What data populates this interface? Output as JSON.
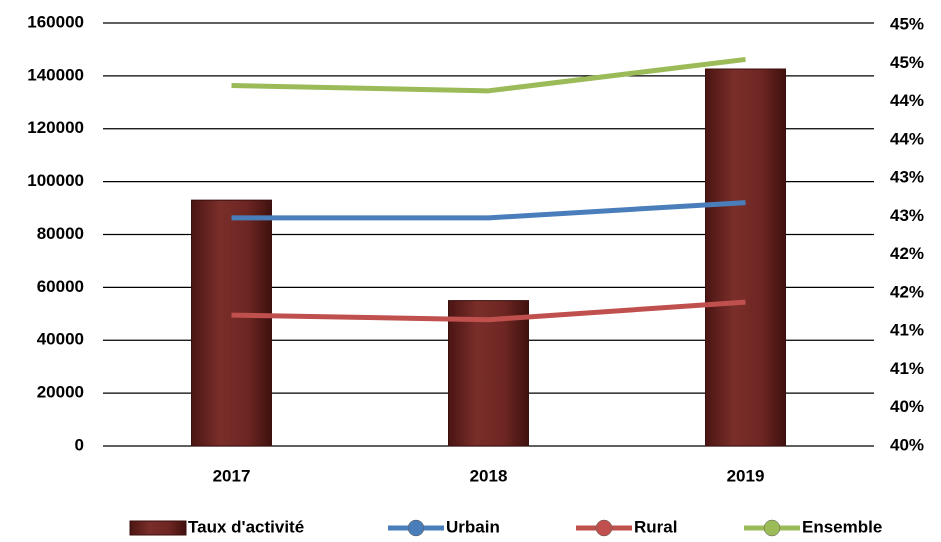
{
  "chart_data": {
    "type": "bar_line",
    "categories": [
      "2017",
      "2018",
      "2019"
    ],
    "series": [
      {
        "name": "Taux d'activité",
        "type": "bar",
        "color": "#722a26",
        "values": [
          93000,
          55000,
          142600
        ]
      },
      {
        "name": "Urbain",
        "type": "line",
        "axis": "y2",
        "color": "#4a7ebb",
        "values": [
          42.88,
          42.88,
          43.08
        ]
      },
      {
        "name": "Rural",
        "type": "line",
        "axis": "y2",
        "color": "#c0504d",
        "values": [
          41.61,
          41.55,
          41.78
        ]
      },
      {
        "name": "Ensemble",
        "type": "line",
        "axis": "y2",
        "color": "#9bbb59",
        "values": [
          44.61,
          44.54,
          44.95
        ]
      }
    ],
    "ylim": [
      0,
      160000
    ],
    "yticks": [
      0,
      20000,
      40000,
      60000,
      80000,
      100000,
      120000,
      140000,
      160000
    ],
    "y2lim": [
      39.9,
      45.4
    ],
    "y2ticks": [
      {
        "value": 39.9,
        "label": "40%"
      },
      {
        "value": 40.4,
        "label": "40%"
      },
      {
        "value": 40.9,
        "label": "41%"
      },
      {
        "value": 41.4,
        "label": "41%"
      },
      {
        "value": 41.9,
        "label": "42%"
      },
      {
        "value": 42.4,
        "label": "42%"
      },
      {
        "value": 42.9,
        "label": "43%"
      },
      {
        "value": 43.4,
        "label": "43%"
      },
      {
        "value": 43.9,
        "label": "44%"
      },
      {
        "value": 44.4,
        "label": "44%"
      },
      {
        "value": 44.9,
        "label": "45%"
      },
      {
        "value": 45.4,
        "label": "45%"
      }
    ],
    "grid": true,
    "legend": "bottom"
  }
}
